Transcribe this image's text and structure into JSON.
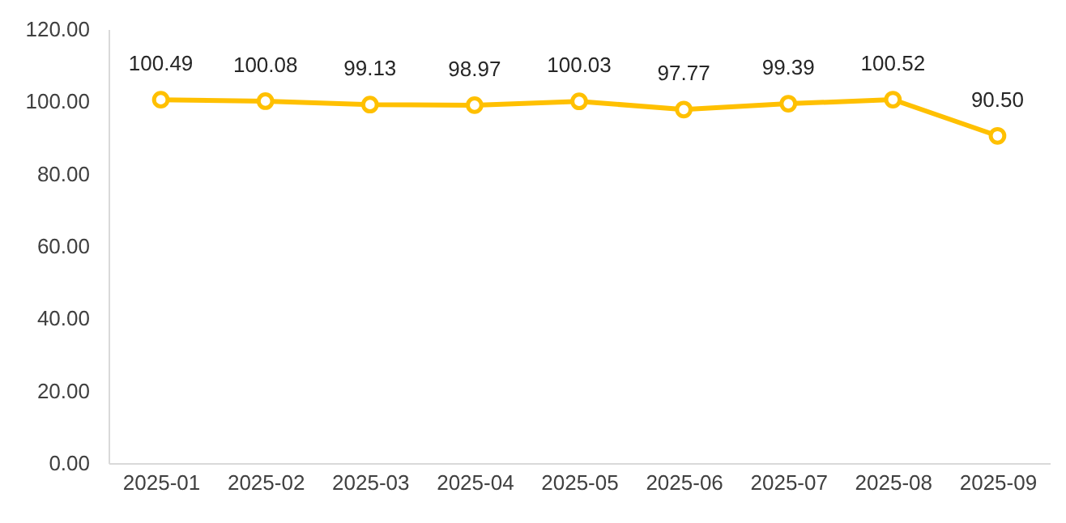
{
  "chart_data": {
    "type": "line",
    "categories": [
      "2025-01",
      "2025-02",
      "2025-03",
      "2025-04",
      "2025-05",
      "2025-06",
      "2025-07",
      "2025-08",
      "2025-09"
    ],
    "series": [
      {
        "color": "#ffc000",
        "values": [
          100.49,
          100.08,
          99.13,
          98.97,
          100.03,
          97.77,
          99.39,
          100.52,
          90.5
        ],
        "value_labels": [
          "100.49",
          "100.08",
          "99.13",
          "98.97",
          "100.03",
          "97.77",
          "99.39",
          "100.52",
          "90.50"
        ]
      }
    ],
    "ylim": [
      0,
      120
    ],
    "yticks": [
      {
        "value": 0,
        "label": "0.00"
      },
      {
        "value": 20,
        "label": "20.00"
      },
      {
        "value": 40,
        "label": "40.00"
      },
      {
        "value": 60,
        "label": "60.00"
      },
      {
        "value": 80,
        "label": "80.00"
      },
      {
        "value": 100,
        "label": "100.00"
      },
      {
        "value": 120,
        "label": "120.00"
      }
    ],
    "grid": false,
    "marker": "circle",
    "line_style": "solid"
  }
}
